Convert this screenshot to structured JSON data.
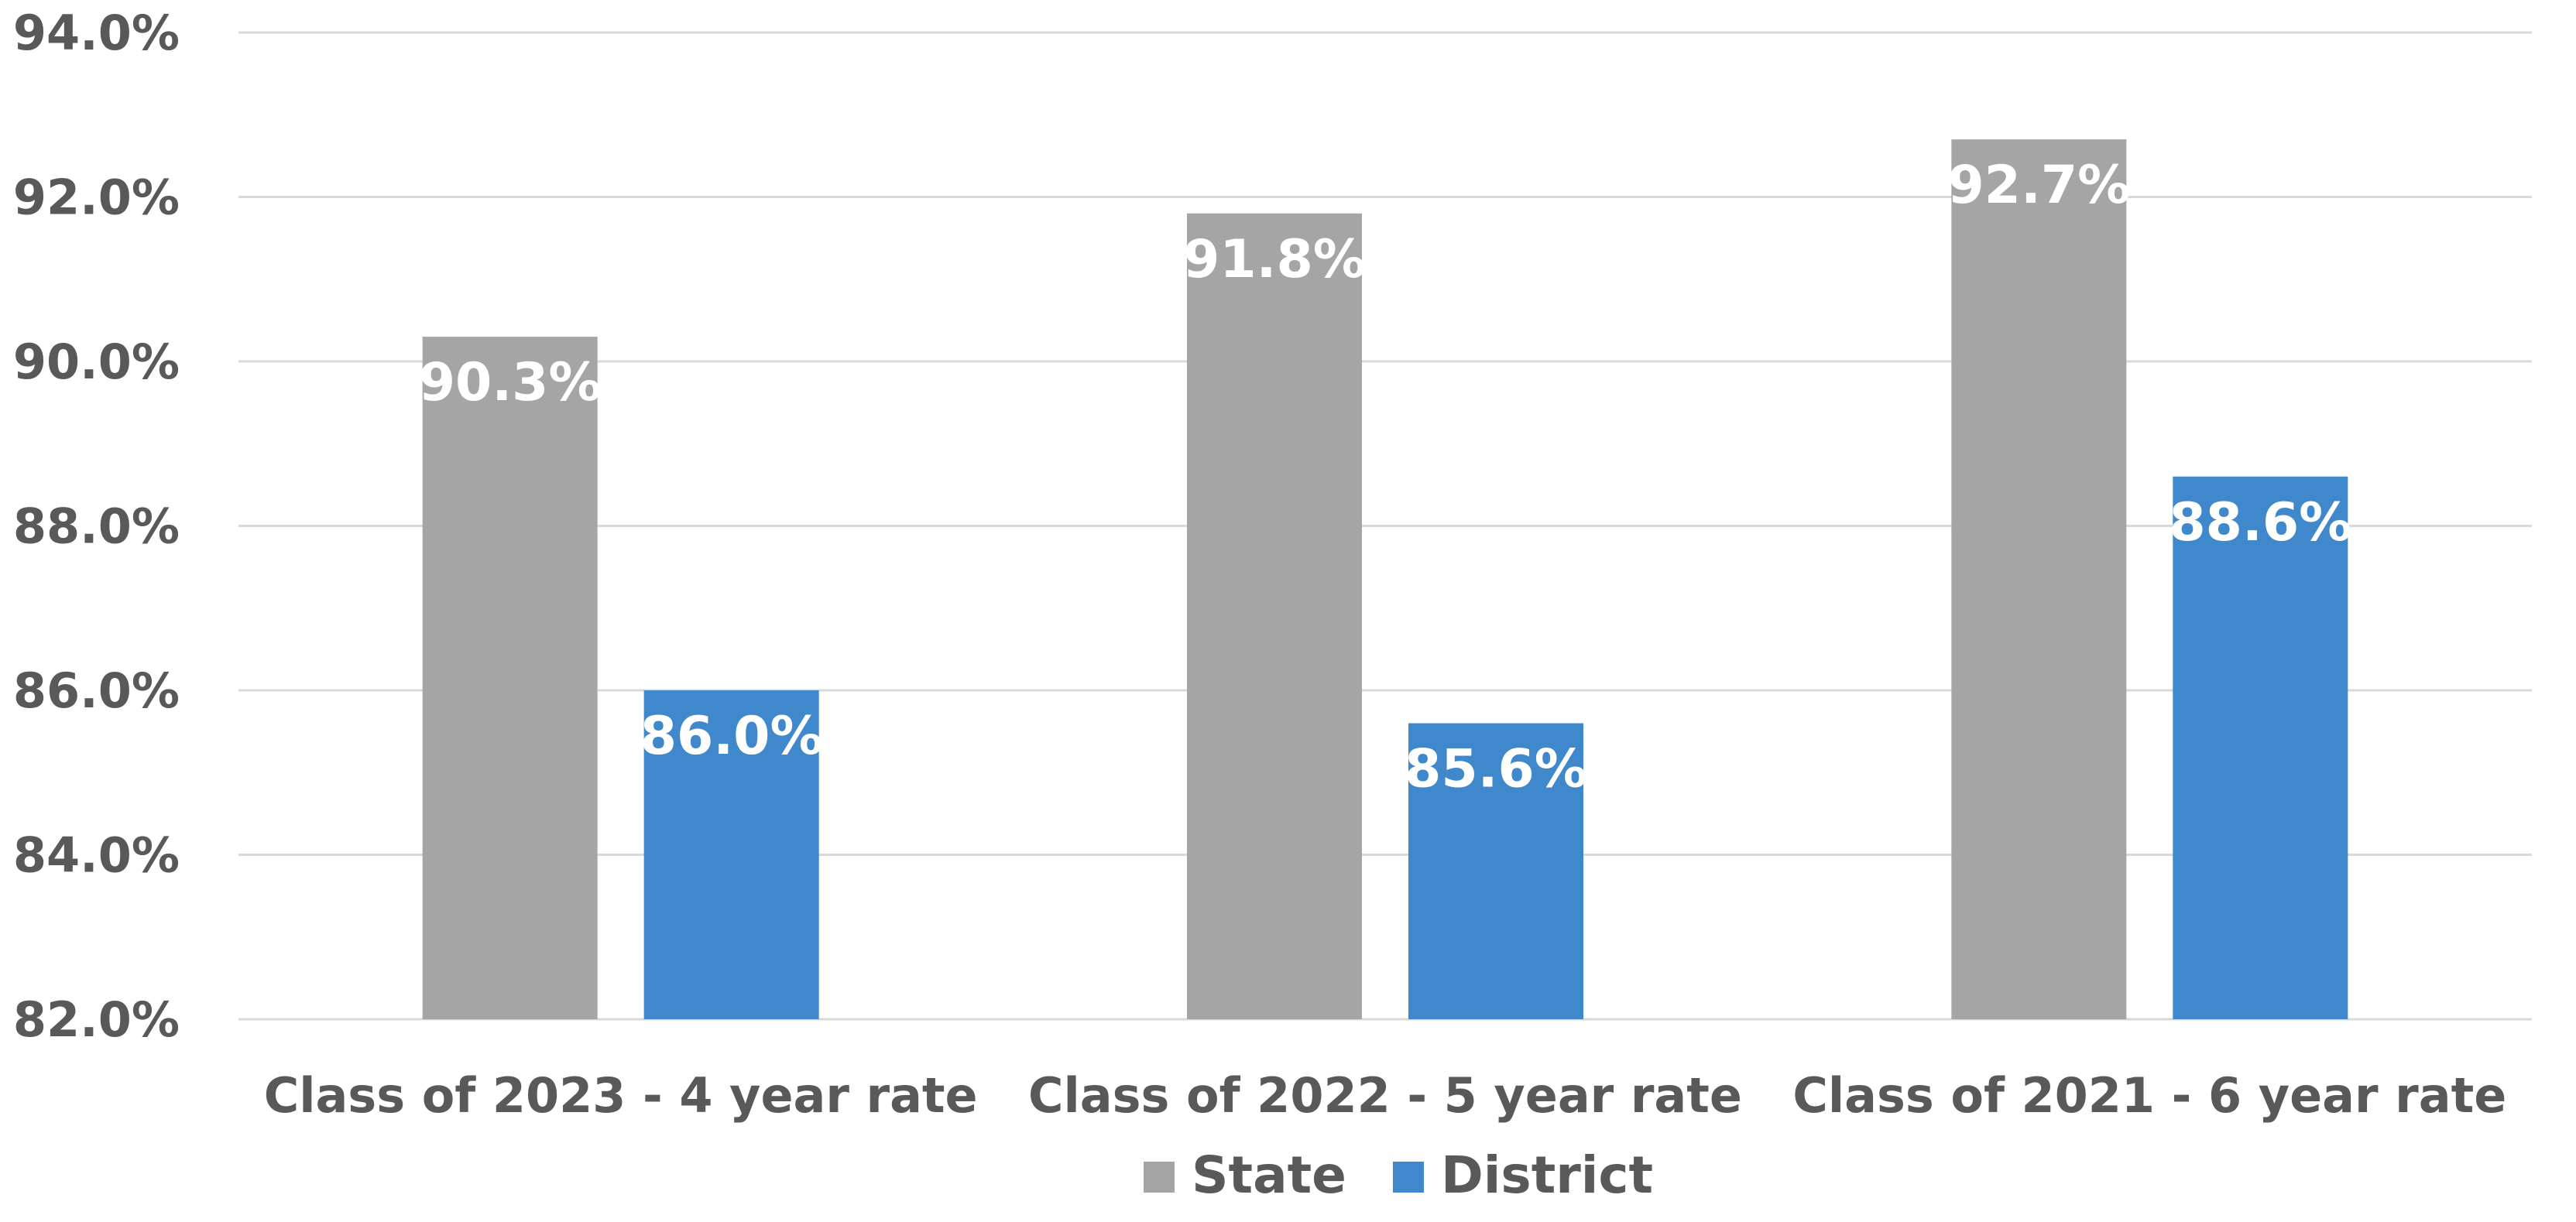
{
  "chart_data": {
    "type": "bar",
    "categories": [
      "Class of 2023 - 4 year rate",
      "Class of 2022 - 5 year rate",
      "Class of 2021 - 6 year rate"
    ],
    "series": [
      {
        "name": "State",
        "color": "#a5a5a5",
        "values": [
          90.3,
          91.8,
          92.7
        ],
        "labels": [
          "90.3%",
          "91.8%",
          "92.7%"
        ]
      },
      {
        "name": "District",
        "color": "#3f88cc",
        "values": [
          86.0,
          85.6,
          88.6
        ],
        "labels": [
          "86.0%",
          "85.6%",
          "88.6%"
        ]
      }
    ],
    "ylim": [
      82,
      94
    ],
    "yticks": [
      82,
      84,
      86,
      88,
      90,
      92,
      94
    ],
    "ytick_labels": [
      "82.0%",
      "84.0%",
      "86.0%",
      "88.0%",
      "90.0%",
      "92.0%",
      "94.0%"
    ],
    "grid": true,
    "legend": "bottom"
  }
}
